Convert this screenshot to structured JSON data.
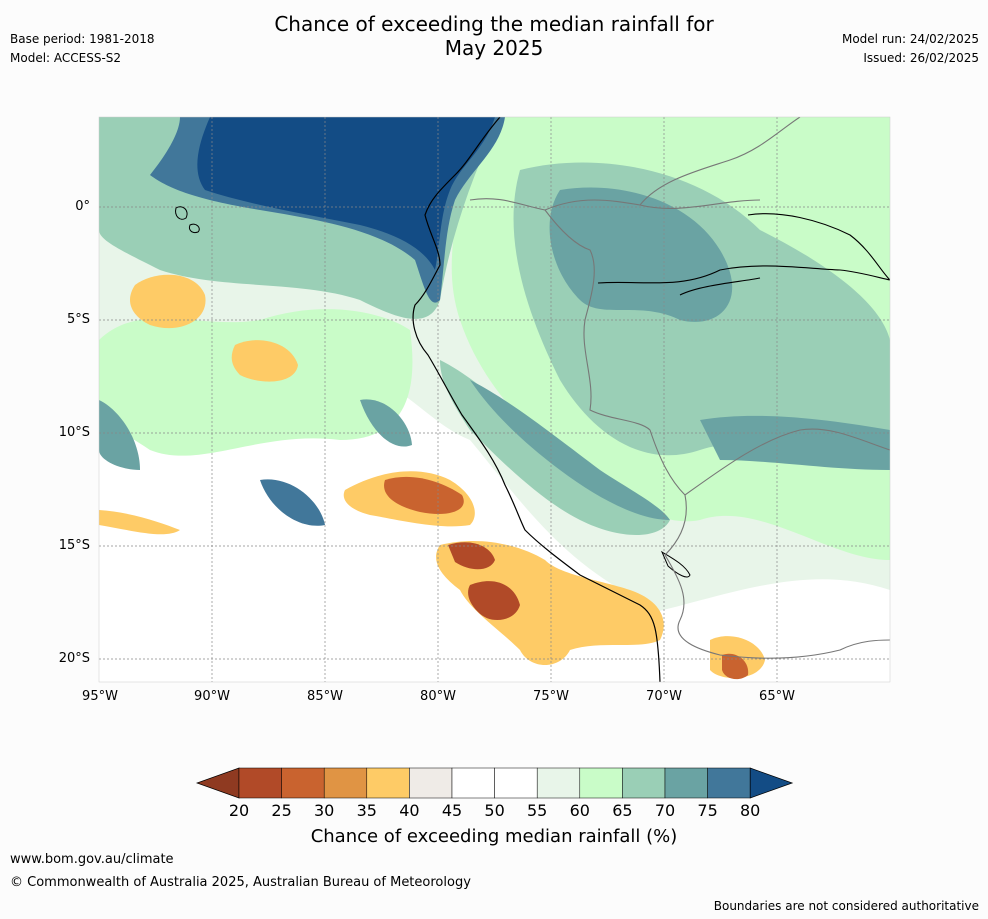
{
  "title_line1": "Chance of exceeding the median rainfall for",
  "title_line2": "May 2025",
  "base_period": "Base period: 1981-2018",
  "model": "Model: ACCESS-S2",
  "model_run": "Model run: 24/02/2025",
  "issued": "Issued: 26/02/2025",
  "lat_labels": [
    "0°",
    "5°S",
    "10°S",
    "15°S",
    "20°S"
  ],
  "lon_labels": [
    "95°W",
    "90°W",
    "85°W",
    "80°W",
    "75°W",
    "70°W",
    "65°W"
  ],
  "colorbar": {
    "ticks": [
      "20",
      "25",
      "30",
      "35",
      "40",
      "45",
      "50",
      "55",
      "60",
      "65",
      "70",
      "75",
      "80"
    ],
    "title": "Chance of exceeding median rainfall (%)",
    "colors": [
      "#8f3a21",
      "#b14a28",
      "#c9632f",
      "#e09444",
      "#fecb66",
      "#efebe7",
      "#ffffff",
      "#ffffff",
      "#e8f5e9",
      "#c9fcc8",
      "#9acfb6",
      "#6aa3a3",
      "#41779a",
      "#134c85"
    ]
  },
  "footer_url": "www.bom.gov.au/climate",
  "footer_copyright": "© Commonwealth of Australia 2025, Australian Bureau of Meteorology",
  "disclaimer": "Boundaries are not considered authoritative"
}
